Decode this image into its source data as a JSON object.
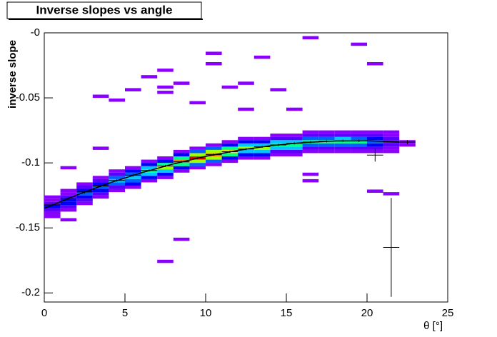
{
  "chart_data": {
    "type": "heatmap",
    "title": "Inverse slopes vs angle",
    "xlabel": "θ [°]",
    "ylabel": "inverse slope",
    "xlim": [
      0,
      25
    ],
    "ylim": [
      -0.207,
      0
    ],
    "xticks": [
      0,
      5,
      10,
      15,
      20,
      25
    ],
    "yticks": [
      {
        "value": 0,
        "label": "-0"
      },
      -0.05,
      -0.1,
      -0.15,
      -0.2
    ],
    "bin_width": 1,
    "bin_height": 0.0025,
    "palette": [
      "#8a00ff",
      "#5a00ff",
      "#0000ff",
      "#0060ff",
      "#00c8ff",
      "#00ff90",
      "#a0ff00",
      "#ffe000",
      "#ff8000",
      "#ff1000"
    ],
    "columns": [
      {
        "x": 0,
        "y0": -0.1425,
        "z": [
          1,
          1,
          2,
          3,
          2,
          1,
          1
        ]
      },
      {
        "x": 1,
        "y0": -0.1375,
        "z": [
          1,
          2,
          3,
          3,
          2,
          1,
          1
        ]
      },
      {
        "x": 2,
        "y0": -0.1325,
        "z": [
          1,
          2,
          3,
          4,
          3,
          2,
          1
        ]
      },
      {
        "x": 3,
        "y0": -0.1275,
        "z": [
          1,
          2,
          3,
          4,
          3,
          2,
          1
        ]
      },
      {
        "x": 4,
        "y0": -0.1225,
        "z": [
          1,
          2,
          4,
          5,
          4,
          2,
          1
        ]
      },
      {
        "x": 5,
        "y0": -0.12,
        "z": [
          1,
          3,
          4,
          5,
          4,
          3,
          1
        ]
      },
      {
        "x": 6,
        "y0": -0.115,
        "z": [
          1,
          3,
          5,
          6,
          5,
          3,
          1
        ]
      },
      {
        "x": 7,
        "y0": -0.1125,
        "z": [
          1,
          3,
          5,
          7,
          6,
          3,
          1
        ]
      },
      {
        "x": 8,
        "y0": -0.1075,
        "z": [
          1,
          3,
          6,
          9,
          6,
          3,
          1
        ]
      },
      {
        "x": 9,
        "y0": -0.105,
        "z": [
          1,
          4,
          7,
          10,
          7,
          4,
          1
        ]
      },
      {
        "x": 10,
        "y0": -0.1025,
        "z": [
          1,
          4,
          7,
          9,
          7,
          4,
          1
        ]
      },
      {
        "x": 11,
        "y0": -0.1,
        "z": [
          1,
          3,
          6,
          8,
          6,
          3,
          1
        ]
      },
      {
        "x": 12,
        "y0": -0.0975,
        "z": [
          1,
          3,
          5,
          7,
          5,
          3,
          1
        ]
      },
      {
        "x": 13,
        "y0": -0.0975,
        "z": [
          1,
          3,
          5,
          7,
          5,
          3,
          1
        ]
      },
      {
        "x": 14,
        "y0": -0.095,
        "z": [
          1,
          2,
          5,
          6,
          5,
          2,
          1
        ]
      },
      {
        "x": 15,
        "y0": -0.095,
        "z": [
          1,
          2,
          5,
          6,
          5,
          2,
          1
        ]
      },
      {
        "x": 16,
        "y0": -0.0925,
        "z": [
          1,
          2,
          4,
          6,
          4,
          2,
          1
        ]
      },
      {
        "x": 17,
        "y0": -0.0925,
        "z": [
          1,
          2,
          4,
          6,
          4,
          2,
          1
        ]
      },
      {
        "x": 18,
        "y0": -0.0925,
        "z": [
          1,
          2,
          4,
          6,
          5,
          2,
          1
        ]
      },
      {
        "x": 19,
        "y0": -0.0925,
        "z": [
          1,
          2,
          4,
          6,
          4,
          2,
          1
        ]
      },
      {
        "x": 20,
        "y0": -0.0925,
        "z": [
          1,
          2,
          3,
          4,
          3,
          2,
          1
        ]
      },
      {
        "x": 21,
        "y0": -0.0925,
        "z": [
          1,
          1,
          2,
          2,
          2,
          1,
          1
        ]
      },
      {
        "x": 22,
        "y0": -0.0875,
        "z": [
          1,
          1
        ]
      }
    ],
    "outliers": {
      "x": [
        7,
        8,
        10,
        13,
        16,
        19,
        20,
        12,
        14,
        9,
        3,
        4,
        5,
        1,
        3,
        7,
        8,
        1,
        20,
        21,
        16,
        16,
        7,
        7,
        10,
        11,
        12,
        15,
        6
      ],
      "y": [
        -0.03,
        -0.04,
        -0.025,
        -0.02,
        -0.005,
        -0.01,
        -0.025,
        -0.04,
        -0.045,
        -0.055,
        -0.05,
        -0.053,
        -0.045,
        -0.105,
        -0.09,
        -0.177,
        -0.16,
        -0.145,
        -0.123,
        -0.125,
        -0.115,
        -0.11,
        -0.047,
        -0.043,
        -0.017,
        -0.043,
        -0.06,
        -0.06,
        -0.035
      ]
    },
    "profile": {
      "x": [
        0.5,
        1.5,
        2.5,
        3.5,
        4.5,
        5.5,
        6.5,
        7.5,
        8.5,
        9.5,
        10.5,
        11.5,
        12.5,
        13.5,
        14.5,
        15.5,
        16.5,
        17.5,
        18.5,
        19.5,
        20.5,
        21.5,
        22.5
      ],
      "values": [
        -0.1323,
        -0.1272,
        -0.1224,
        -0.1178,
        -0.1135,
        -0.1095,
        -0.1058,
        -0.1024,
        -0.0992,
        -0.0963,
        -0.0937,
        -0.0914,
        -0.0894,
        -0.0876,
        -0.0862,
        -0.085,
        -0.084,
        -0.0834,
        -0.083,
        -0.083,
        -0.094,
        -0.165,
        -0.084
      ],
      "errors": [
        0.001,
        0.001,
        0.001,
        0.001,
        0.001,
        0.001,
        0.0008,
        0.0008,
        0.0008,
        0.0008,
        0.0008,
        0.0008,
        0.0008,
        0.0008,
        0.0008,
        0.0008,
        0.0008,
        0.0008,
        0.0008,
        0.001,
        0.005,
        0.038,
        0.0015
      ]
    },
    "fit": {
      "x": [
        0,
        2,
        4,
        6,
        8,
        10,
        12,
        14,
        16,
        18,
        20,
        22
      ],
      "y": [
        -0.135,
        -0.1248,
        -0.1156,
        -0.1077,
        -0.1008,
        -0.095,
        -0.0904,
        -0.0868,
        -0.0844,
        -0.0832,
        -0.083,
        -0.084
      ]
    }
  }
}
